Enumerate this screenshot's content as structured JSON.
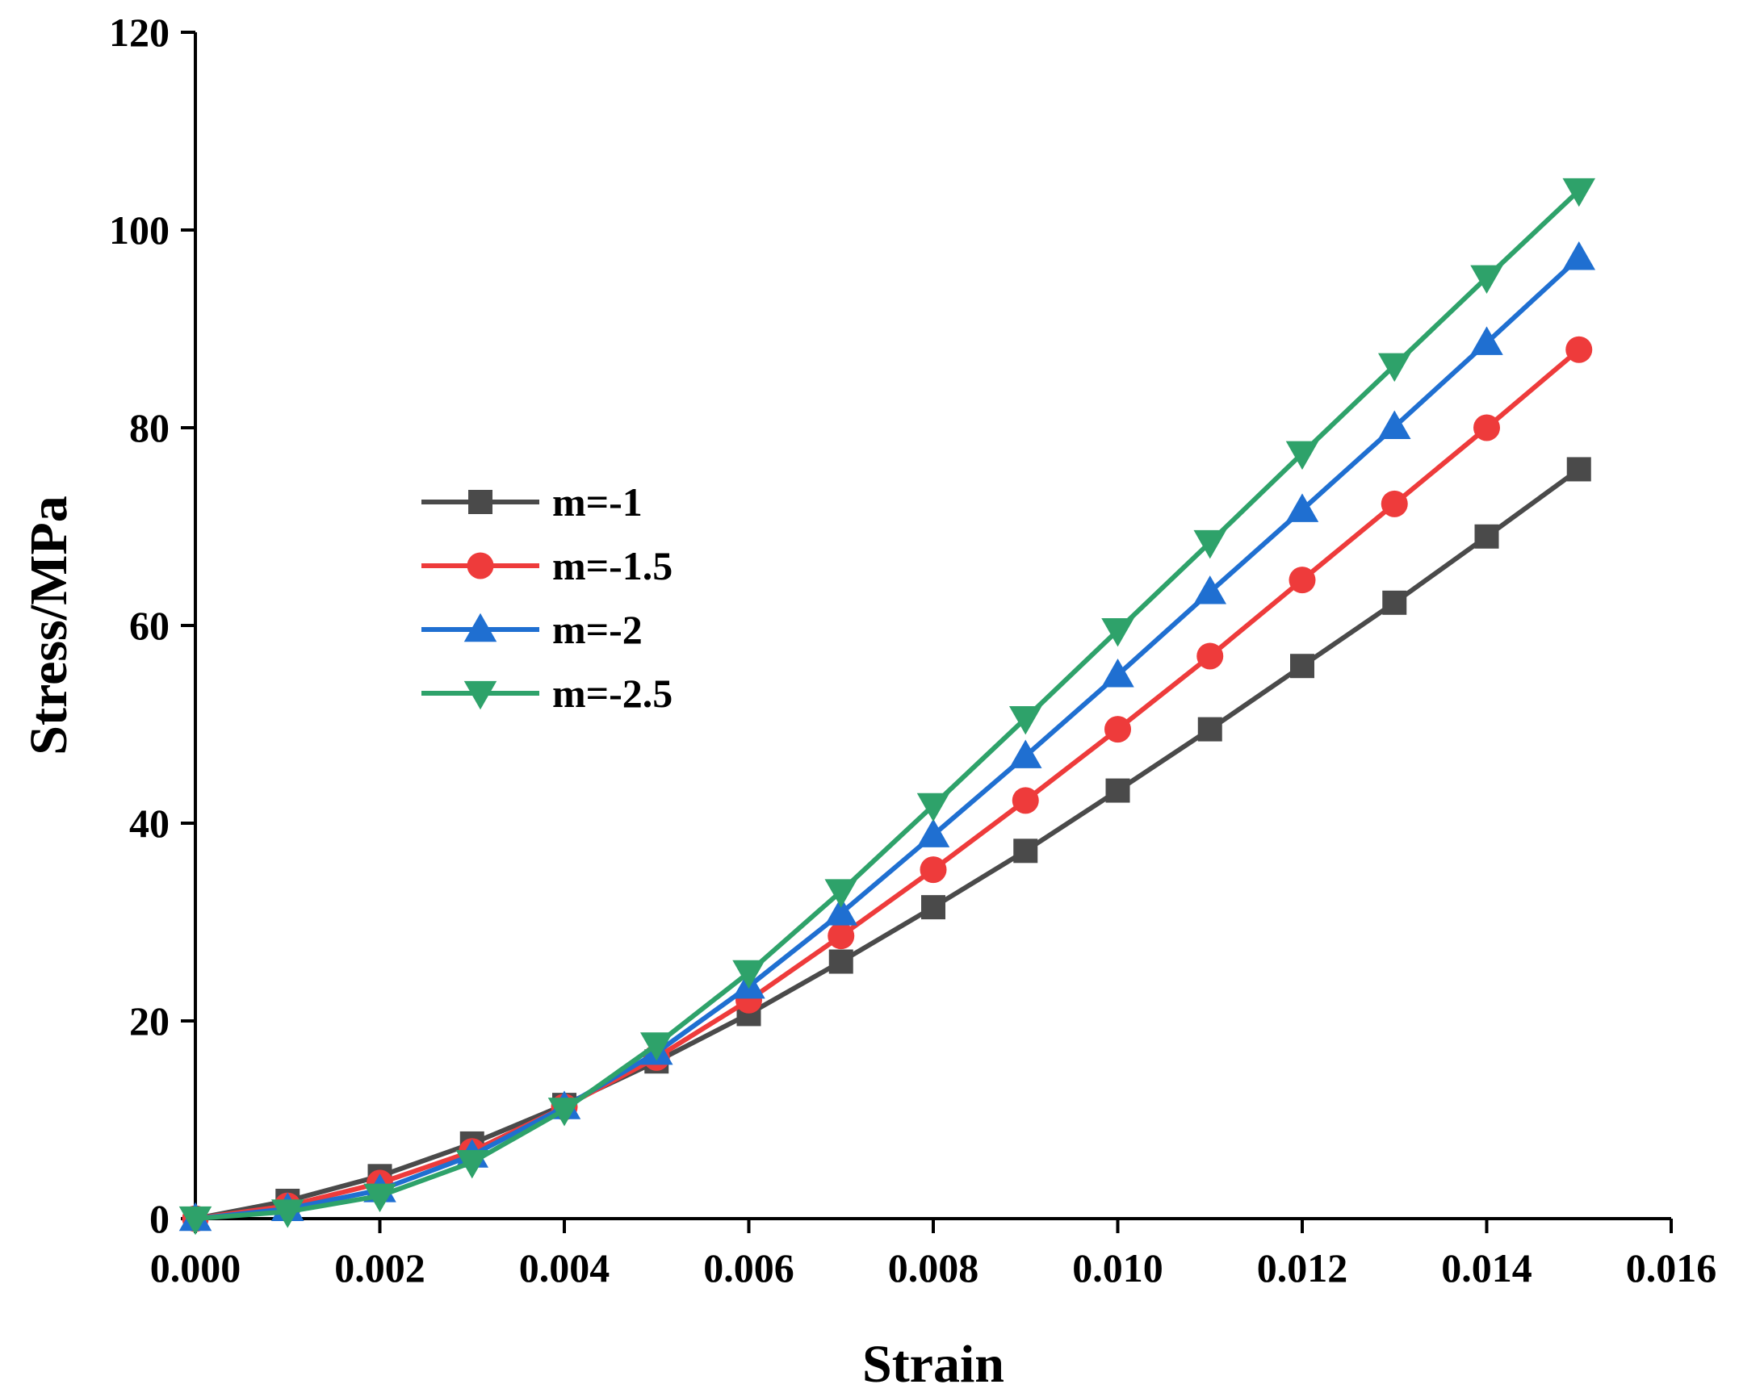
{
  "chart_data": {
    "type": "line",
    "title": "",
    "xlabel": "Strain",
    "ylabel": "Stress/MPa",
    "xlim": [
      0,
      0.016
    ],
    "ylim": [
      0,
      120
    ],
    "xticks": [
      "0.000",
      "0.002",
      "0.004",
      "0.006",
      "0.008",
      "0.010",
      "0.012",
      "0.014",
      "0.016"
    ],
    "yticks": [
      "0",
      "20",
      "40",
      "60",
      "80",
      "100",
      "120"
    ],
    "grid": false,
    "legend_position": "center-left",
    "x": [
      0,
      0.001,
      0.002,
      0.003,
      0.004,
      0.005,
      0.006,
      0.007,
      0.008,
      0.009,
      0.01,
      0.011,
      0.012,
      0.013,
      0.014,
      0.015
    ],
    "series": [
      {
        "name": "m=-1",
        "color": "#4a4a4a",
        "marker": "square",
        "values": [
          0,
          1.8,
          4.3,
          7.6,
          11.5,
          15.9,
          20.7,
          26.0,
          31.5,
          37.2,
          43.3,
          49.5,
          55.9,
          62.3,
          69.0,
          75.8
        ]
      },
      {
        "name": "m=-1.5",
        "color": "#ee3b3b",
        "marker": "circle",
        "values": [
          0,
          1.3,
          3.6,
          6.8,
          11.3,
          16.3,
          22.1,
          28.6,
          35.3,
          42.3,
          49.5,
          56.9,
          64.6,
          72.3,
          80.0,
          87.9
        ]
      },
      {
        "name": "m=-2",
        "color": "#1f6fd1",
        "marker": "triangle-up",
        "values": [
          0,
          1.0,
          2.9,
          6.4,
          11.3,
          16.8,
          23.5,
          30.9,
          38.8,
          46.8,
          55.0,
          63.4,
          71.7,
          80.1,
          88.6,
          97.2
        ]
      },
      {
        "name": "m=-2.5",
        "color": "#2ea26a",
        "marker": "triangle-down",
        "values": [
          0,
          0.7,
          2.3,
          5.7,
          11.0,
          17.6,
          24.9,
          33.1,
          41.8,
          50.6,
          59.5,
          68.4,
          77.4,
          86.3,
          95.2,
          104.0
        ]
      }
    ]
  }
}
